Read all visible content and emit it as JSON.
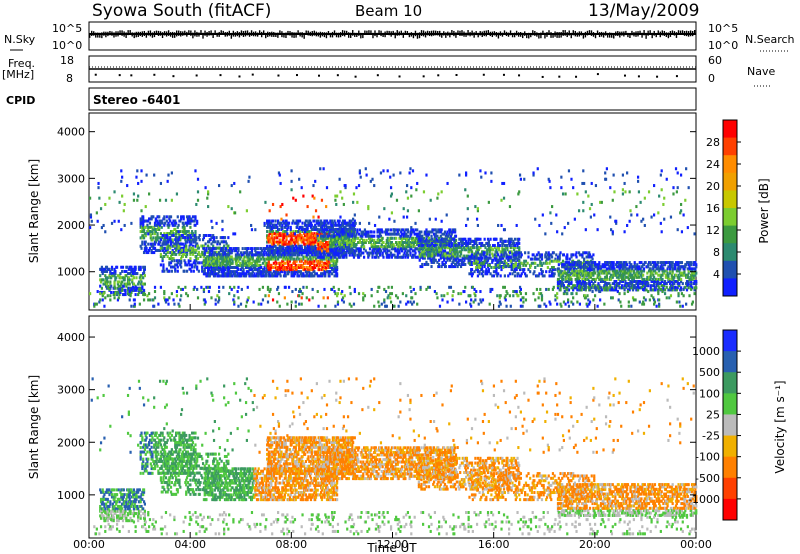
{
  "header": {
    "station": "Syowa South (fitACF)",
    "beam": "Beam 10",
    "date": "13/May/2009"
  },
  "top_panels": {
    "nsky_label": "N.Sky",
    "nsky_ticks": [
      "10^5",
      "10^0"
    ],
    "nsearch_label": "N.Search",
    "nsearch_ticks": [
      "10^5",
      "10^0"
    ],
    "freq_label": "Freq.",
    "freq_unit": "[MHz]",
    "freq_ticks": [
      "18",
      "8"
    ],
    "nave_label": "Nave",
    "nave_ticks": [
      "60",
      "0"
    ],
    "cpid_label": "CPID",
    "cpid_value": "Stereo -6401"
  },
  "chart_data": [
    {
      "type": "heatmap",
      "panel": "power",
      "ylabel": "Slant Range [km]",
      "xlabel": "",
      "yticks": [
        "4000",
        "3000",
        "2000",
        "1000"
      ],
      "ylim": [
        180,
        4400
      ],
      "xlim": [
        0,
        24
      ],
      "colorbar_label": "Power [dB]",
      "colorbar_ticks": [
        "28",
        "24",
        "20",
        "16",
        "12",
        "8",
        "4"
      ],
      "colorbar_colors": [
        "#ff0000",
        "#ff4000",
        "#ff8c00",
        "#f0a000",
        "#c8c800",
        "#7ccd30",
        "#3c9a40",
        "#2c8a70",
        "#2050b0",
        "#1020ff"
      ]
    },
    {
      "type": "heatmap",
      "panel": "velocity",
      "ylabel": "Slant Range [km]",
      "xlabel": "Time UT",
      "yticks": [
        "4000",
        "3000",
        "2000",
        "1000"
      ],
      "xticks": [
        "00:00",
        "04:00",
        "08:00",
        "12:00",
        "16:00",
        "20:00",
        "00:00"
      ],
      "ylim": [
        180,
        4400
      ],
      "xlim": [
        0,
        24
      ],
      "colorbar_label": "Velocity [m s⁻¹]",
      "colorbar_ticks": [
        "1000",
        "500",
        "100",
        "25",
        "-25",
        "-100",
        "-500",
        "-1000"
      ],
      "colorbar_colors": [
        "#1a2cff",
        "#2860b0",
        "#3c9a60",
        "#50c840",
        "#bbbbbb",
        "#f0b000",
        "#ff8000",
        "#ff4000",
        "#ff0000"
      ]
    }
  ]
}
